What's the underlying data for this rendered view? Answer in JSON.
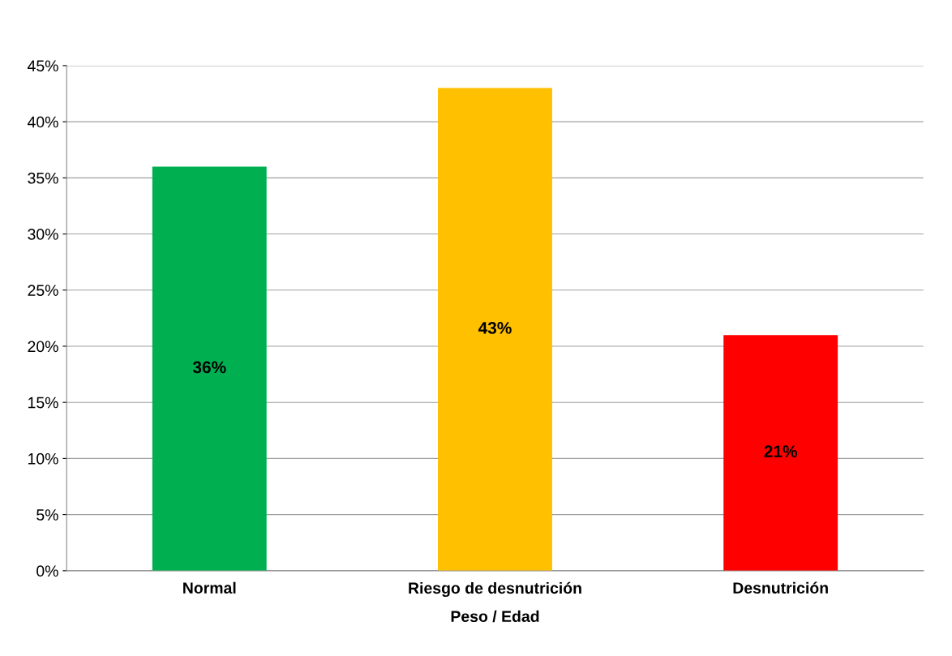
{
  "chart_data": {
    "type": "bar",
    "xlabel": "Peso / Edad",
    "categories": [
      "Normal",
      "Riesgo de desnutrición",
      "Desnutrición"
    ],
    "values": [
      36,
      43,
      21
    ],
    "colors": [
      "#00b050",
      "#ffc000",
      "#ff0000"
    ],
    "value_labels": [
      "36%",
      "43%",
      "21%"
    ],
    "ylim": [
      0,
      45
    ],
    "yticks": [
      {
        "value": 0,
        "label": "0%"
      },
      {
        "value": 5,
        "label": "5%"
      },
      {
        "value": 10,
        "label": "10%"
      },
      {
        "value": 15,
        "label": "15%"
      },
      {
        "value": 20,
        "label": "20%"
      },
      {
        "value": 25,
        "label": "25%"
      },
      {
        "value": 30,
        "label": "30%"
      },
      {
        "value": 35,
        "label": "35%"
      },
      {
        "value": 40,
        "label": "40%"
      },
      {
        "value": 45,
        "label": "45%"
      }
    ],
    "grid": "y",
    "legend": false
  }
}
